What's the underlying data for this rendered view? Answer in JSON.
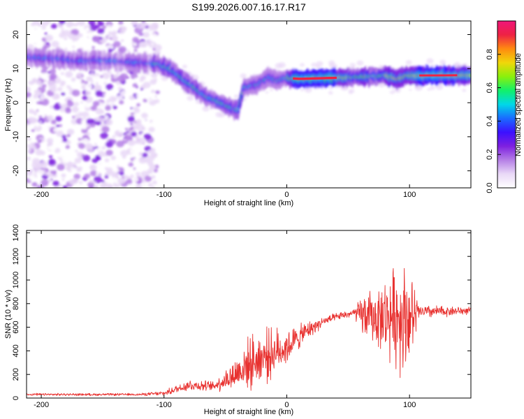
{
  "title": "S199.2026.007.16.17.R17",
  "colors": {
    "snr_line": "#e8312f",
    "cmap": [
      "#ffffff",
      "#e9d8f7",
      "#b57fe6",
      "#7e20e0",
      "#3b10ff",
      "#1a6bff",
      "#00d8e8",
      "#12f06a",
      "#8af00c",
      "#f0d70a",
      "#ff8a10",
      "#ee2244",
      "#f0157a"
    ]
  },
  "chart_data": [
    {
      "type": "heatmap",
      "name": "spectrogram",
      "xlabel": "Height of straight line (km)",
      "ylabel": "Frequency (Hz)",
      "xlim": [
        -212,
        150
      ],
      "ylim": [
        -25,
        24
      ],
      "xticks": [
        -200,
        -100,
        0,
        100
      ],
      "yticks": [
        -20,
        -10,
        0,
        10,
        20
      ],
      "ridge": [
        {
          "x": -212,
          "f": 13.2
        },
        {
          "x": -190,
          "f": 13.0
        },
        {
          "x": -170,
          "f": 12.2
        },
        {
          "x": -150,
          "f": 12.5
        },
        {
          "x": -135,
          "f": 12.0
        },
        {
          "x": -120,
          "f": 11.8
        },
        {
          "x": -105,
          "f": 11.2
        },
        {
          "x": -95,
          "f": 9.8
        },
        {
          "x": -85,
          "f": 7.0
        },
        {
          "x": -75,
          "f": 4.2
        },
        {
          "x": -65,
          "f": 1.5
        },
        {
          "x": -55,
          "f": 0.2
        },
        {
          "x": -47,
          "f": -1.2
        },
        {
          "x": -40,
          "f": -2.5
        },
        {
          "x": -35,
          "f": 4.5
        },
        {
          "x": -25,
          "f": 5.2
        },
        {
          "x": -15,
          "f": 7.5
        },
        {
          "x": -8,
          "f": 6.5
        },
        {
          "x": 0,
          "f": 7.2
        },
        {
          "x": 10,
          "f": 7.0
        },
        {
          "x": 20,
          "f": 7.1
        },
        {
          "x": 40,
          "f": 7.3
        },
        {
          "x": 60,
          "f": 7.6
        },
        {
          "x": 80,
          "f": 8.0
        },
        {
          "x": 90,
          "f": 7.0
        },
        {
          "x": 100,
          "f": 8.0
        },
        {
          "x": 120,
          "f": 8.0
        },
        {
          "x": 150,
          "f": 8.1
        }
      ],
      "colorbar": {
        "label": "Normalized spectral amplitude",
        "range": [
          0,
          1
        ],
        "ticks": [
          "0.0",
          "0.2",
          "0.4",
          "0.6",
          "0.8"
        ]
      }
    },
    {
      "type": "line",
      "name": "snr",
      "xlabel": "Height of straight line (km)",
      "ylabel": "SNR (10 * v/v)",
      "xlim": [
        -212,
        150
      ],
      "ylim": [
        0,
        1420
      ],
      "xticks": [
        -200,
        -100,
        0,
        100
      ],
      "yticks": [
        0,
        200,
        400,
        600,
        800,
        1000,
        1200,
        1400
      ],
      "envelope": [
        {
          "x": -212,
          "mean": 30,
          "noise": 10
        },
        {
          "x": -120,
          "mean": 30,
          "noise": 10
        },
        {
          "x": -100,
          "mean": 40,
          "noise": 20
        },
        {
          "x": -80,
          "mean": 110,
          "noise": 50
        },
        {
          "x": -60,
          "mean": 100,
          "noise": 40
        },
        {
          "x": -45,
          "mean": 180,
          "noise": 120
        },
        {
          "x": -30,
          "mean": 300,
          "noise": 220
        },
        {
          "x": -15,
          "mean": 370,
          "noise": 220
        },
        {
          "x": 0,
          "mean": 430,
          "noise": 150
        },
        {
          "x": 15,
          "mean": 560,
          "noise": 80
        },
        {
          "x": 30,
          "mean": 650,
          "noise": 40
        },
        {
          "x": 45,
          "mean": 700,
          "noise": 30
        },
        {
          "x": 55,
          "mean": 720,
          "noise": 40
        },
        {
          "x": 62,
          "mean": 700,
          "noise": 180
        },
        {
          "x": 75,
          "mean": 680,
          "noise": 250
        },
        {
          "x": 85,
          "mean": 700,
          "noise": 380
        },
        {
          "x": 95,
          "mean": 700,
          "noise": 480
        },
        {
          "x": 103,
          "mean": 680,
          "noise": 300
        },
        {
          "x": 108,
          "mean": 730,
          "noise": 60
        },
        {
          "x": 150,
          "mean": 740,
          "noise": 30
        }
      ]
    }
  ]
}
